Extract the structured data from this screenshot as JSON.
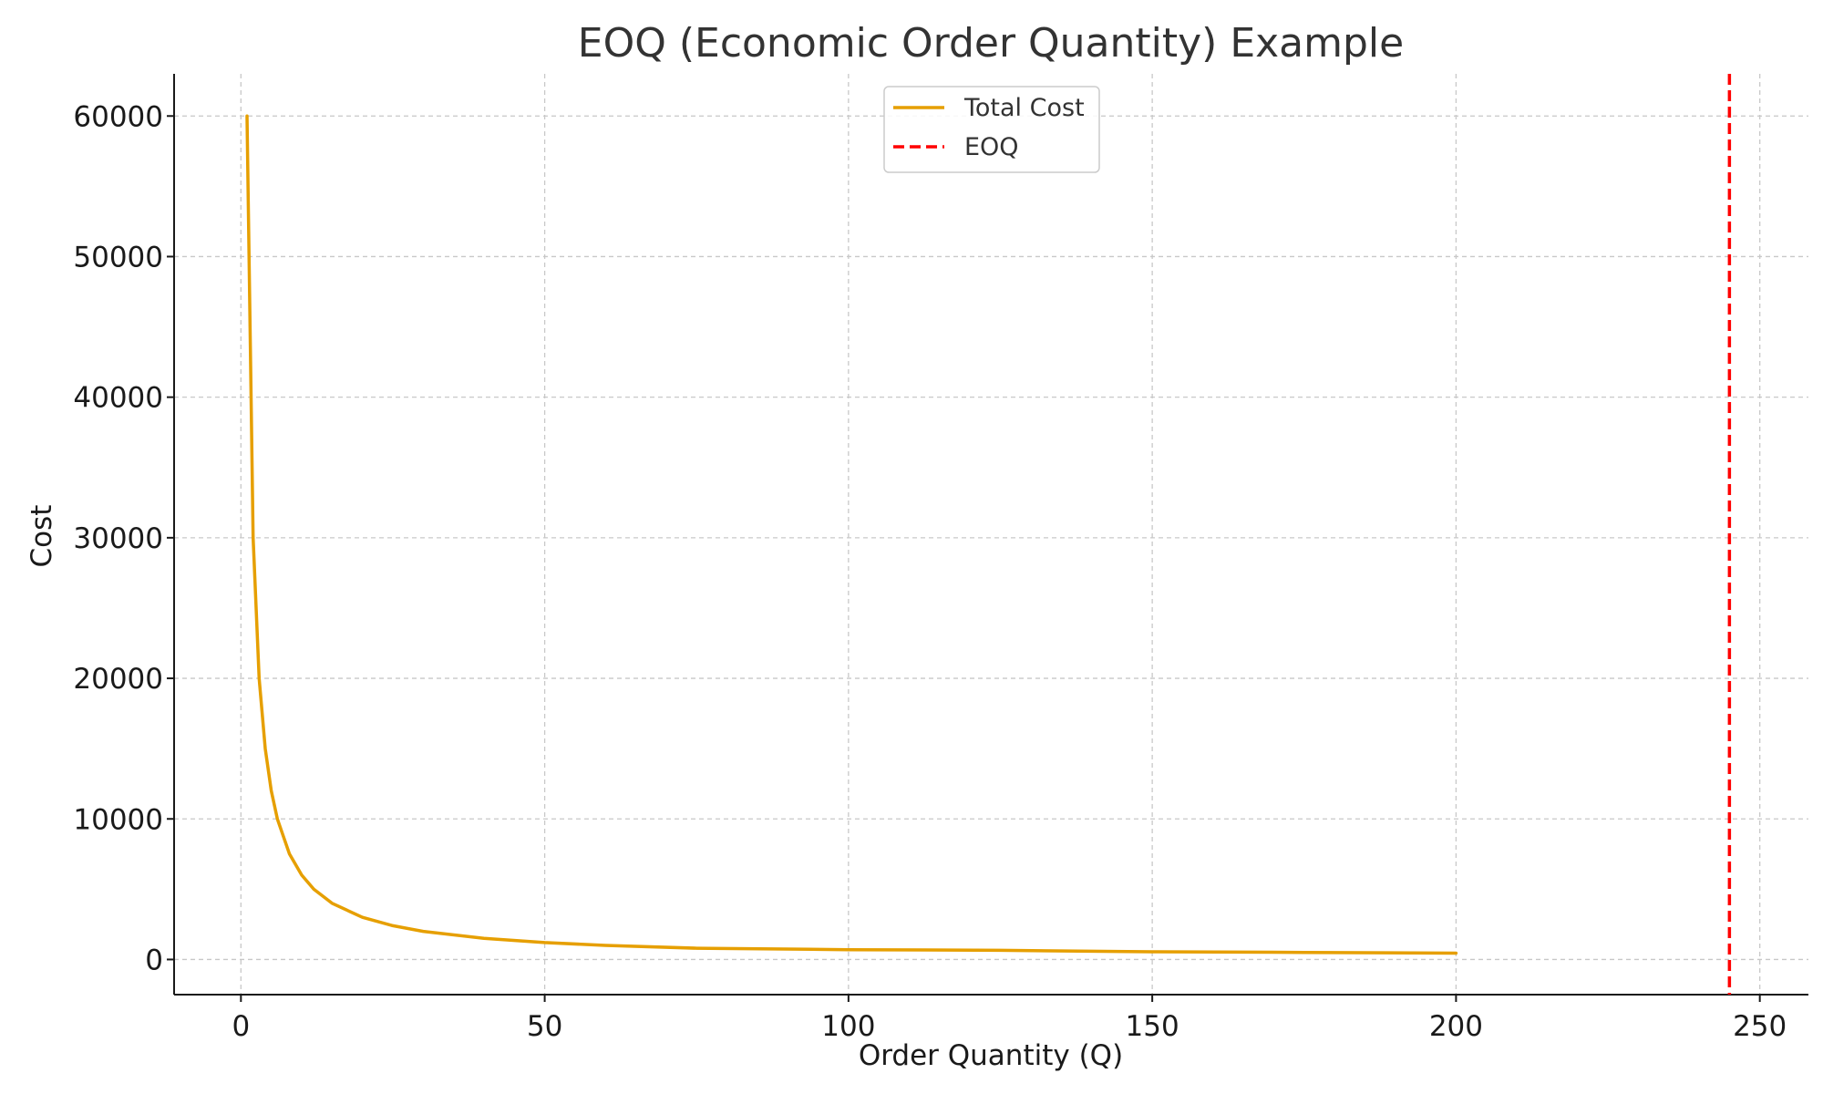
{
  "chart_data": {
    "type": "line",
    "title": "EOQ (Economic Order Quantity) Example",
    "xlabel": "Order Quantity (Q)",
    "ylabel": "Cost",
    "xlim": [
      -11,
      258
    ],
    "ylim": [
      -2500,
      63000
    ],
    "x_ticks": [
      0,
      50,
      100,
      150,
      200,
      250
    ],
    "y_ticks": [
      0,
      10000,
      20000,
      30000,
      40000,
      50000,
      60000
    ],
    "grid": true,
    "legend_position": "top-center",
    "series": [
      {
        "name": "Total Cost",
        "color": "#E69F00",
        "line_style": "solid",
        "points": [
          [
            1,
            60000
          ],
          [
            2,
            30000
          ],
          [
            3,
            20000
          ],
          [
            4,
            15000
          ],
          [
            5,
            12000
          ],
          [
            6,
            10000
          ],
          [
            8,
            7500
          ],
          [
            10,
            6000
          ],
          [
            12,
            5000
          ],
          [
            15,
            4000
          ],
          [
            20,
            3000
          ],
          [
            25,
            2400
          ],
          [
            30,
            2000
          ],
          [
            40,
            1500
          ],
          [
            50,
            1200
          ],
          [
            60,
            1000
          ],
          [
            75,
            800
          ],
          [
            100,
            700
          ],
          [
            125,
            650
          ],
          [
            150,
            550
          ],
          [
            175,
            500
          ],
          [
            200,
            450
          ]
        ]
      },
      {
        "name": "EOQ",
        "color": "#FF0000",
        "line_style": "dashed",
        "x": 245
      }
    ]
  }
}
